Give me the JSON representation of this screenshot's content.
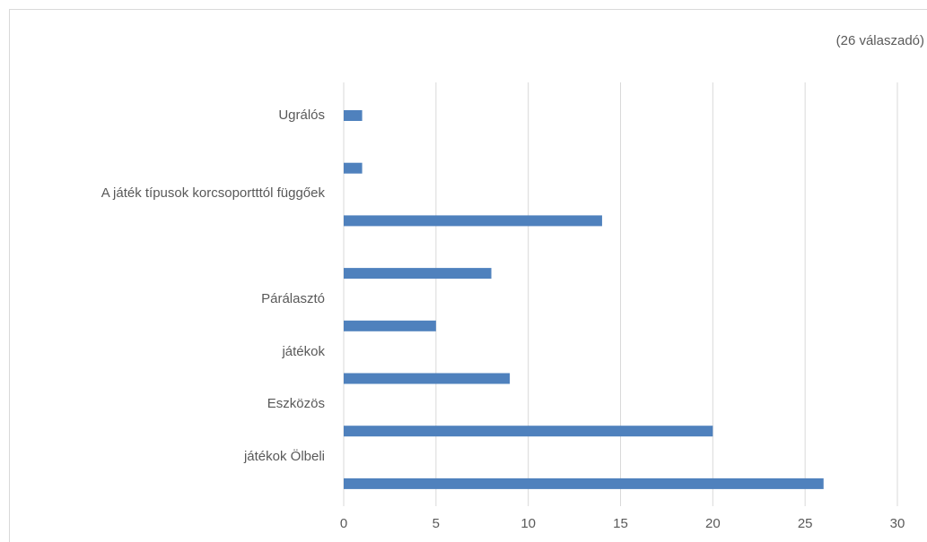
{
  "chart_data": {
    "type": "bar",
    "orientation": "horizontal",
    "subtitle": "(26 válaszadó)",
    "categories": [
      "Ugrálós",
      null,
      "A játék típusok korcsoportttól függőek",
      null,
      "Párálasztó",
      "játékok",
      "Eszközös",
      "játékok Ölbeli"
    ],
    "values": [
      1,
      1,
      14,
      8,
      5,
      9,
      20,
      26
    ],
    "color": "#4f81bd",
    "xlim": [
      0,
      30
    ],
    "xticks": [
      0,
      5,
      10,
      15,
      20,
      25,
      30
    ],
    "grid": true
  }
}
